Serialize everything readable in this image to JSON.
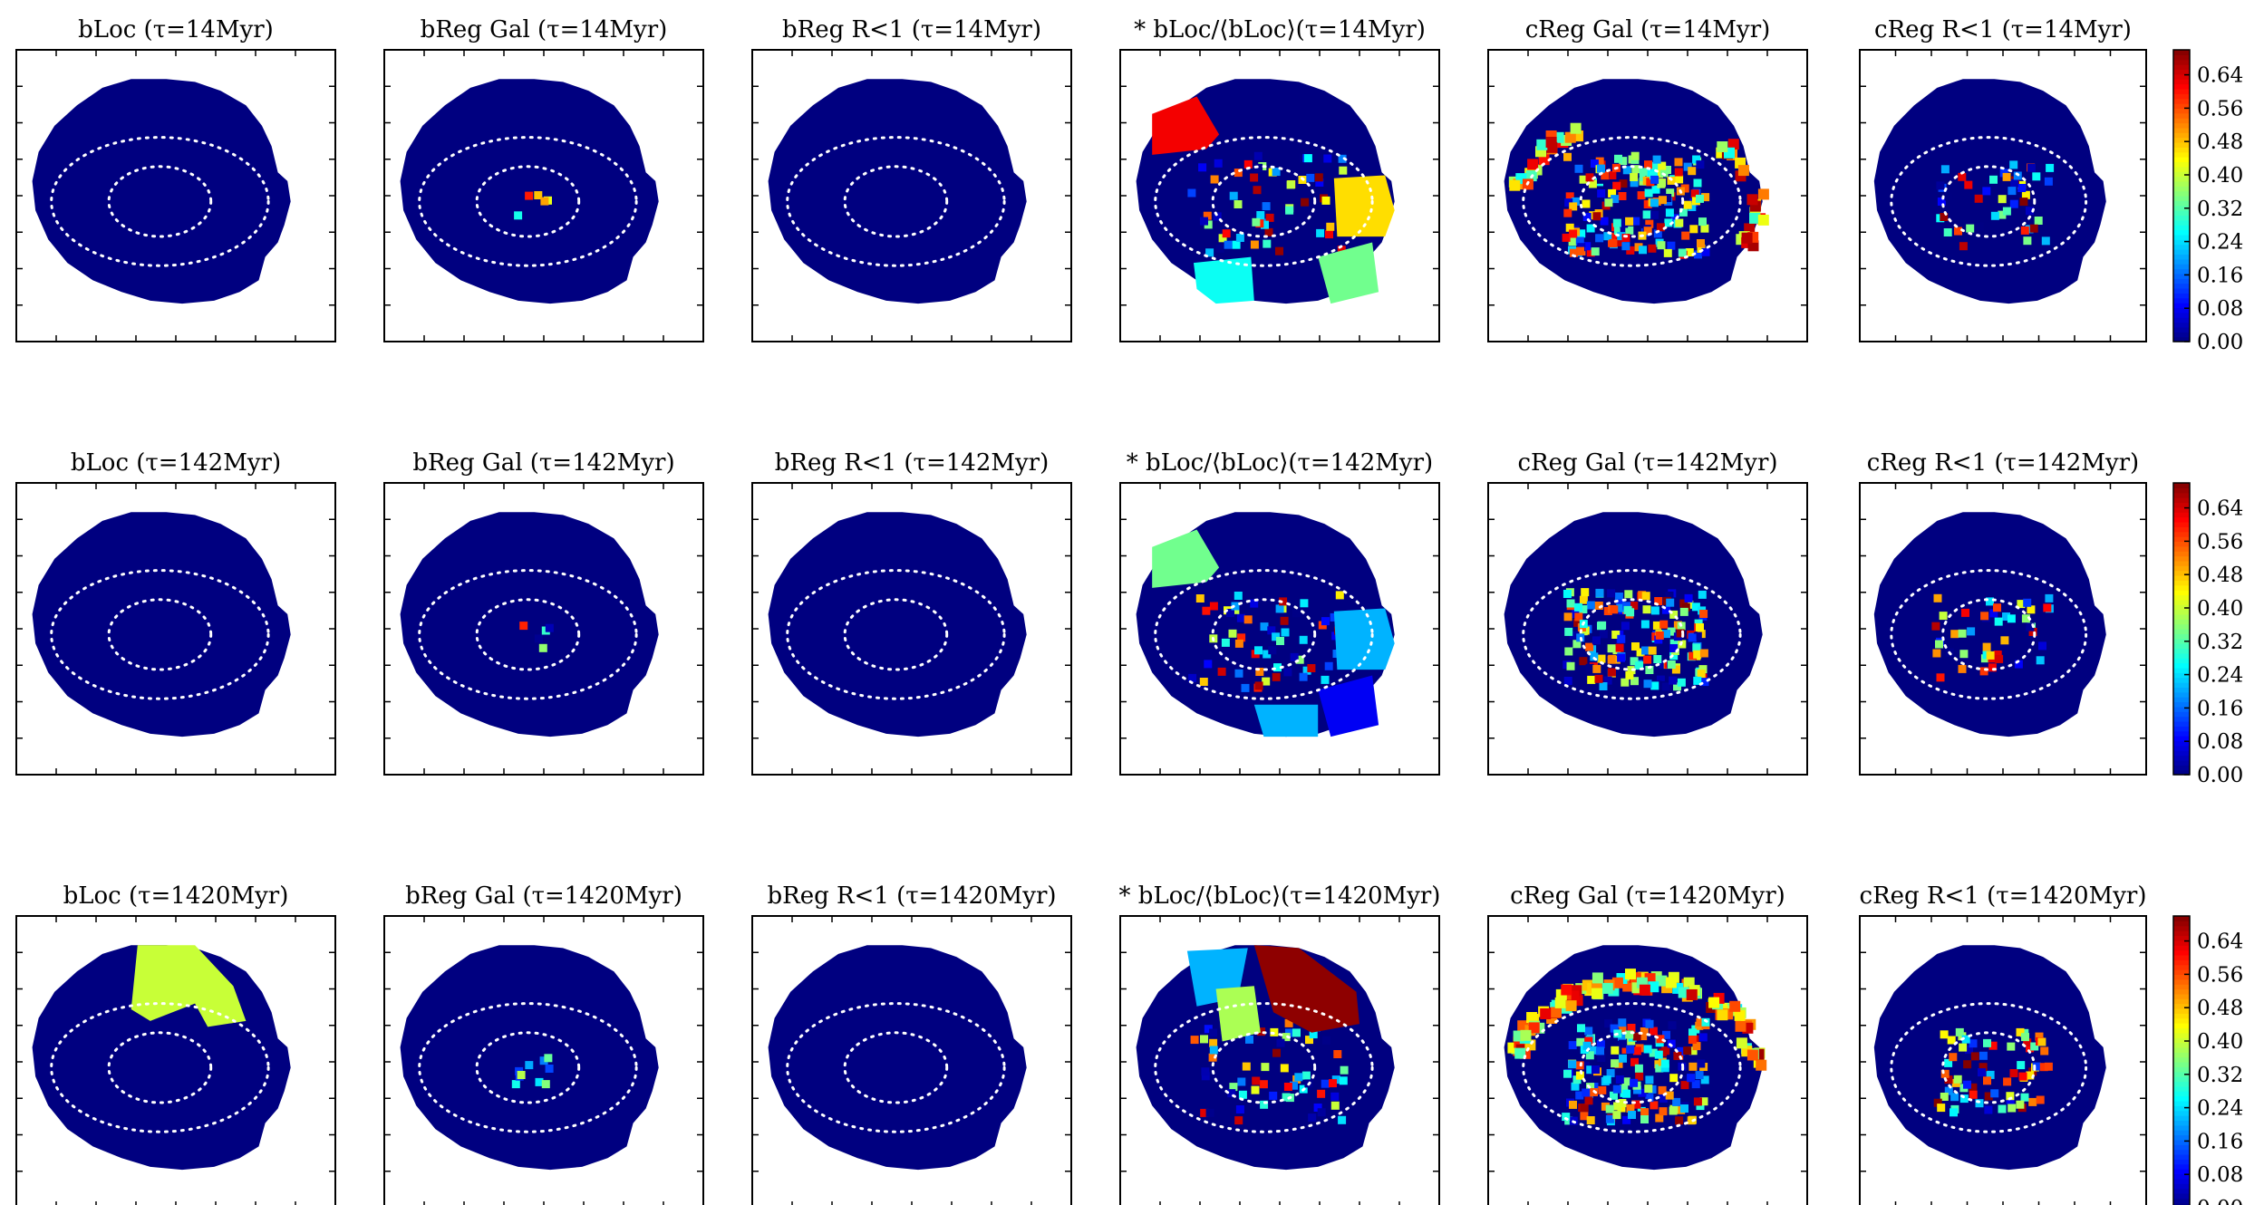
{
  "chart_data": {
    "type": "heatmap",
    "rows": [
      {
        "tau_label": "τ=14Myr",
        "tau": "14",
        "unit": "Myr"
      },
      {
        "tau_label": "τ=142Myr",
        "tau": "142",
        "unit": "Myr"
      },
      {
        "tau_label": "τ=1420Myr",
        "tau": "1420",
        "unit": "Myr"
      }
    ],
    "columns": [
      {
        "label": "bLoc",
        "pattern": "empty"
      },
      {
        "label": "bReg Gal",
        "pattern": "sparse-center"
      },
      {
        "label": "bReg R<1",
        "pattern": "empty"
      },
      {
        "label": "* bLoc/⟨bLoc⟩",
        "pattern": "sectors"
      },
      {
        "label": "cReg Gal",
        "pattern": "dense"
      },
      {
        "label": "cReg R<1",
        "pattern": "medium",
        "has_colorbar": true
      }
    ],
    "panel_titles": [
      [
        "bLoc (τ=14Myr)",
        "bReg Gal (τ=14Myr)",
        "bReg R<1 (τ=14Myr)",
        "* bLoc/⟨bLoc⟩(τ=14Myr)",
        "cReg Gal (τ=14Myr)",
        "cReg R<1 (τ=14Myr)"
      ],
      [
        "bLoc (τ=142Myr)",
        "bReg Gal (τ=142Myr)",
        "bReg R<1 (τ=142Myr)",
        "* bLoc/⟨bLoc⟩(τ=142Myr)",
        "cReg Gal (τ=142Myr)",
        "cReg R<1 (τ=142Myr)"
      ],
      [
        "bLoc (τ=1420Myr)",
        "bReg Gal (τ=1420Myr)",
        "bReg R<1 (τ=1420Myr)",
        "* bLoc/⟨bLoc⟩(τ=1420Myr)",
        "cReg Gal (τ=1420Myr)",
        "cReg R<1 (τ=1420Myr)"
      ]
    ],
    "colorbar": {
      "ticks": [
        "0.00",
        "0.08",
        "0.16",
        "0.24",
        "0.32",
        "0.40",
        "0.48",
        "0.56",
        "0.64"
      ],
      "min": 0.0,
      "max": 0.7,
      "colormap": "jet"
    },
    "sector_values": {
      "row0": [
        {
          "sector": "upper-left",
          "value": 0.62
        },
        {
          "sector": "right",
          "value": 0.46
        },
        {
          "sector": "lower-right",
          "value": 0.34
        },
        {
          "sector": "lower-left",
          "value": 0.27
        }
      ],
      "row1": [
        {
          "sector": "upper-left",
          "value": 0.34
        },
        {
          "sector": "right",
          "value": 0.21
        },
        {
          "sector": "lower-right",
          "value": 0.08
        },
        {
          "sector": "bottom",
          "value": 0.21
        }
      ],
      "row2": [
        {
          "sector": "top-left",
          "value": 0.21
        },
        {
          "sector": "top-right",
          "value": 0.69
        },
        {
          "sector": "upper-middle",
          "value": 0.38
        }
      ],
      "row2_col0": [
        {
          "sector": "top-middle",
          "value": 0.4
        }
      ]
    },
    "background_value": 0.0,
    "overlay": "two dotted white ellipses (inner and outer radii)"
  },
  "colors": {
    "background_map": "#00007f",
    "ellipse": "#ffffff",
    "frame": "#000000"
  }
}
